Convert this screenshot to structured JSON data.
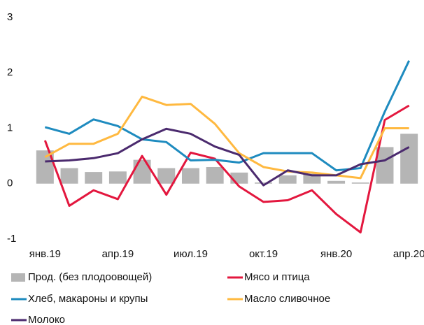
{
  "chart_data": {
    "type": "bar",
    "categories": [
      "янв.19",
      null,
      null,
      "апр.19",
      null,
      null,
      "июл.19",
      null,
      null,
      "окт.19",
      null,
      null,
      "янв.20",
      null,
      null,
      "апр.20"
    ],
    "ylim": [
      -1,
      3
    ],
    "yticks": [
      -1,
      0,
      1,
      2,
      3
    ],
    "grid": false,
    "series": [
      {
        "name": "Прод. (без плодоовощей)",
        "type": "bar",
        "color": "#b5b5b5",
        "values": [
          0.6,
          0.28,
          0.21,
          0.22,
          0.43,
          0.28,
          0.28,
          0.3,
          0.2,
          0.02,
          0.15,
          0.18,
          0.05,
          0.02,
          0.66,
          0.9
        ]
      },
      {
        "name": "Мясо и птица",
        "type": "line",
        "color": "#e3173e",
        "values": [
          0.78,
          -0.4,
          -0.12,
          -0.28,
          0.5,
          -0.2,
          0.56,
          0.45,
          -0.05,
          -0.33,
          -0.3,
          -0.12,
          -0.55,
          -0.88,
          1.15,
          1.41
        ]
      },
      {
        "name": "Хлеб, макароны и крупы",
        "type": "line",
        "color": "#1e8bbf",
        "values": [
          1.02,
          0.9,
          1.16,
          1.04,
          0.8,
          0.75,
          0.42,
          0.43,
          0.38,
          0.55,
          0.55,
          0.55,
          0.24,
          0.28,
          1.3,
          2.22
        ]
      },
      {
        "name": "Масло сливочное",
        "type": "line",
        "color": "#ffb940",
        "values": [
          0.48,
          0.72,
          0.72,
          0.9,
          1.57,
          1.42,
          1.44,
          1.08,
          0.55,
          0.3,
          0.22,
          0.2,
          0.15,
          0.1,
          1.0,
          1.0
        ]
      },
      {
        "name": "Молоко",
        "type": "line",
        "color": "#4b2a6e",
        "values": [
          0.4,
          0.42,
          0.46,
          0.55,
          0.8,
          0.99,
          0.9,
          0.67,
          0.52,
          -0.03,
          0.24,
          0.15,
          0.15,
          0.35,
          0.42,
          0.66
        ]
      }
    ]
  }
}
